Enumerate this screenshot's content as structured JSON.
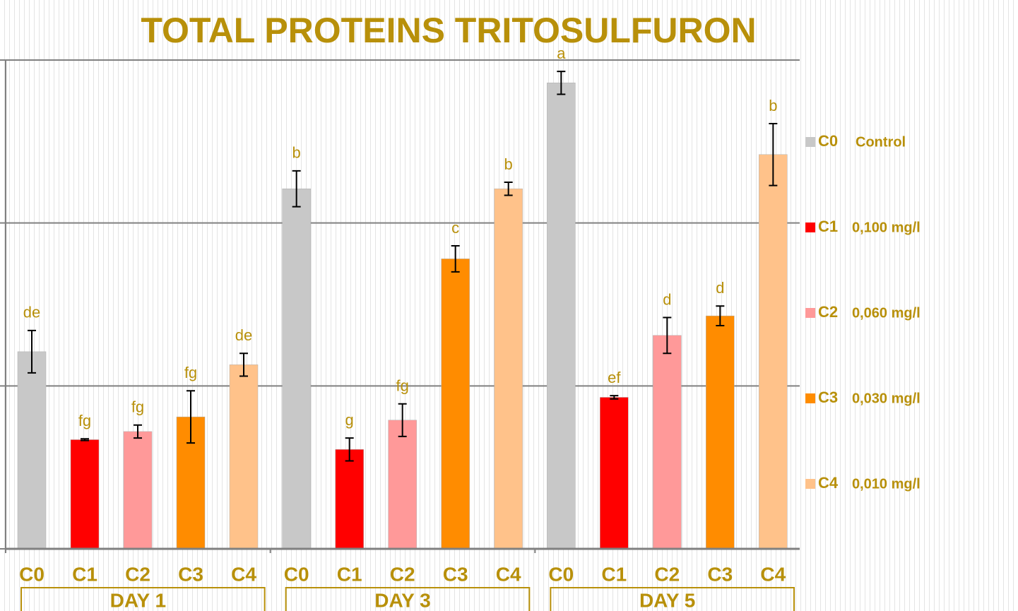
{
  "chart_data": {
    "type": "bar",
    "title": "TOTAL PROTEINS  TRITOSULFURON",
    "groups": [
      "DAY 1",
      "DAY 3",
      "DAY 5"
    ],
    "ylim": [
      0,
      3
    ],
    "yticks": [
      0,
      1,
      2,
      3
    ],
    "grid": true,
    "series": [
      {
        "name": "C0",
        "description": "Control",
        "color": "#c8c8c8",
        "values": [
          1.21,
          2.21,
          2.86
        ],
        "errors": [
          0.13,
          0.11,
          0.07
        ],
        "letters": [
          "de",
          "b",
          "a"
        ]
      },
      {
        "name": "C1",
        "description": "0,100 mg/l",
        "color": "#ff0000",
        "values": [
          0.67,
          0.61,
          0.93
        ],
        "errors": [
          0.005,
          0.07,
          0.01
        ],
        "letters": [
          "fg",
          "g",
          "ef"
        ]
      },
      {
        "name": "C2",
        "description": "0,060 mg/l",
        "color": "#ff9999",
        "values": [
          0.72,
          0.79,
          1.31
        ],
        "errors": [
          0.04,
          0.1,
          0.11
        ],
        "letters": [
          "fg",
          "fg",
          "d"
        ]
      },
      {
        "name": "C3",
        "description": "0,030 mg/l",
        "color": "#ff8c00",
        "values": [
          0.81,
          1.78,
          1.43
        ],
        "errors": [
          0.16,
          0.08,
          0.06
        ],
        "letters": [
          "fg",
          "c",
          "d"
        ]
      },
      {
        "name": "C4",
        "description": "0,010 mg/l",
        "color": "#ffc28a",
        "values": [
          1.13,
          2.21,
          2.42
        ],
        "errors": [
          0.07,
          0.04,
          0.19
        ],
        "letters": [
          "de",
          "b",
          "b"
        ]
      }
    ]
  }
}
